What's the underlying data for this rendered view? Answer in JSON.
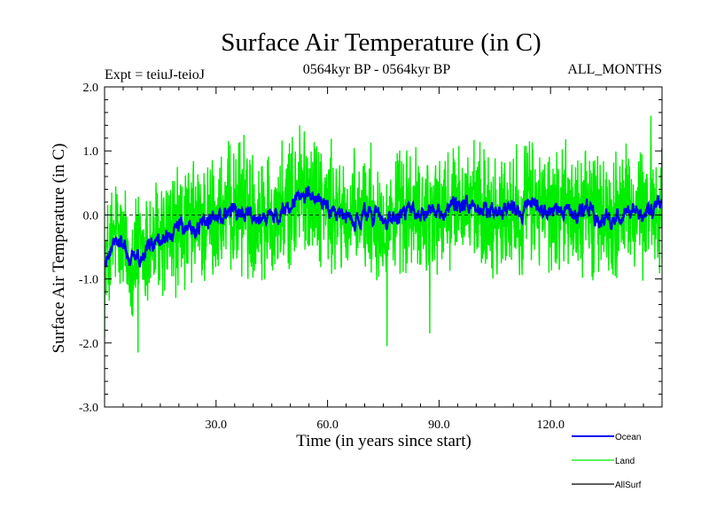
{
  "chart_data": {
    "type": "line",
    "title": "Surface Air Temperature (in C)",
    "subtitle_left": "Expt = teiuJ-teioJ",
    "subtitle_center": "0564kyr BP - 0564kyr BP",
    "subtitle_right": "ALL_MONTHS",
    "xlabel": "Time (in years since start)",
    "ylabel": "Surface Air Temperature (in C)",
    "xlim": [
      0,
      150
    ],
    "ylim": [
      -3.0,
      2.0
    ],
    "xticks": [
      30,
      60,
      90,
      120
    ],
    "xtick_labels": [
      "30.0",
      "60.0",
      "90.0",
      "120.0"
    ],
    "yticks": [
      -3.0,
      -2.0,
      -1.0,
      0.0,
      1.0,
      2.0
    ],
    "ytick_labels": [
      "-3.0",
      "-2.0",
      "-1.0",
      "0.0",
      "1.0",
      "2.0"
    ],
    "reference_line": 0.0,
    "series": [
      {
        "name": "Ocean",
        "color": "#0000ee",
        "anchors_x": [
          0,
          1,
          3,
          5,
          7,
          10,
          13,
          16,
          19,
          22,
          25,
          28,
          31,
          34,
          37,
          40,
          43,
          46,
          49,
          52,
          55,
          58,
          61,
          64,
          67,
          70,
          73,
          76,
          79,
          82,
          85,
          88,
          91,
          94,
          97,
          100,
          103,
          106,
          109,
          112,
          115,
          118,
          121,
          124,
          127,
          130,
          133,
          136,
          139,
          142,
          145,
          148,
          150
        ],
        "anchors_y": [
          -0.8,
          -0.7,
          -0.3,
          -0.5,
          -0.7,
          -0.6,
          -0.45,
          -0.4,
          -0.25,
          -0.2,
          -0.15,
          -0.1,
          -0.05,
          0.05,
          0.1,
          0.0,
          0.05,
          -0.05,
          0.1,
          0.3,
          0.4,
          0.25,
          0.05,
          0.0,
          -0.1,
          0.05,
          0.0,
          -0.1,
          0.0,
          0.05,
          -0.05,
          0.1,
          0.0,
          0.15,
          0.2,
          0.1,
          0.05,
          0.0,
          0.1,
          0.05,
          0.2,
          0.1,
          0.0,
          0.15,
          0.05,
          0.1,
          0.0,
          -0.05,
          0.05,
          0.1,
          0.0,
          0.1,
          0.15
        ],
        "noise_amplitude": 0.3
      },
      {
        "name": "Land",
        "color": "#00ee00",
        "anchors_x": [
          0,
          1,
          3,
          5,
          7,
          10,
          13,
          16,
          19,
          22,
          25,
          28,
          31,
          34,
          37,
          40,
          43,
          46,
          49,
          52,
          55,
          58,
          61,
          64,
          67,
          70,
          73,
          76,
          79,
          82,
          85,
          88,
          91,
          94,
          97,
          100,
          103,
          106,
          109,
          112,
          115,
          118,
          121,
          124,
          127,
          130,
          133,
          136,
          139,
          142,
          145,
          148,
          150
        ],
        "anchors_y": [
          -0.8,
          -0.7,
          -0.3,
          -0.5,
          -0.7,
          -0.6,
          -0.45,
          -0.4,
          -0.25,
          -0.2,
          -0.15,
          -0.1,
          -0.05,
          0.05,
          0.1,
          0.0,
          0.05,
          -0.05,
          0.1,
          0.3,
          0.4,
          0.25,
          0.05,
          0.0,
          -0.1,
          0.05,
          0.0,
          -0.1,
          0.0,
          0.05,
          -0.05,
          0.1,
          0.0,
          0.15,
          0.2,
          0.1,
          0.05,
          0.0,
          0.1,
          0.05,
          0.2,
          0.1,
          0.0,
          0.15,
          0.05,
          0.1,
          0.0,
          -0.05,
          0.05,
          0.1,
          0.0,
          0.1,
          0.15
        ],
        "noise_amplitude": 1.5,
        "notable_extremes": [
          {
            "x": 9.0,
            "y": -2.15
          },
          {
            "x": 37.5,
            "y": 1.25
          },
          {
            "x": 52.5,
            "y": 1.4
          },
          {
            "x": 76.0,
            "y": -2.05
          },
          {
            "x": 87.5,
            "y": -1.85
          },
          {
            "x": 147.0,
            "y": 1.55
          }
        ]
      },
      {
        "name": "AllSurf",
        "color": "#000000",
        "values": []
      }
    ],
    "legend": [
      {
        "name": "Ocean",
        "color": "#0000ee"
      },
      {
        "name": "Land",
        "color": "#00ee00"
      },
      {
        "name": "AllSurf",
        "color": "#000000"
      }
    ],
    "legend_position": "bottom-right"
  }
}
